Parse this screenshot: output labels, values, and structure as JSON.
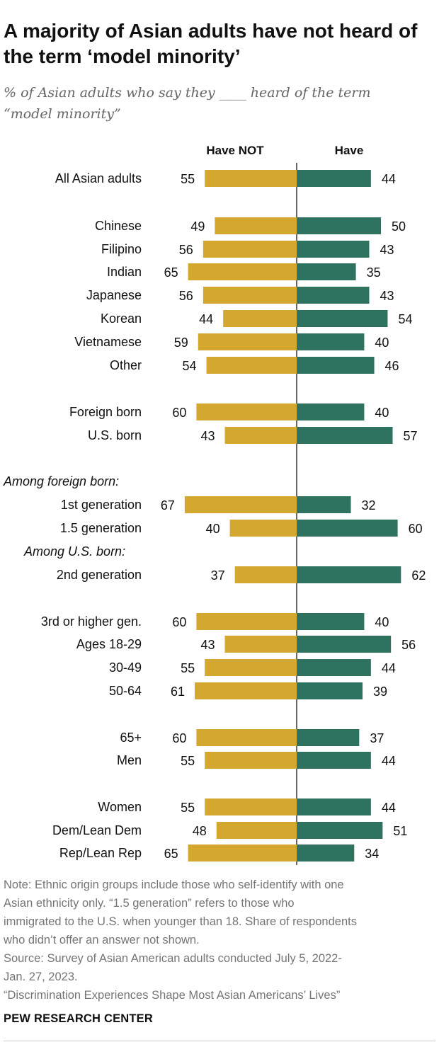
{
  "title": "A majority of Asian adults have not heard of the term ‘model minority’",
  "subtitle_line1": "% of Asian adults who say they ____ heard of the term",
  "subtitle_line2": "“model minority”",
  "colors": {
    "have_not": "#D4A82E",
    "have": "#2E7260",
    "axis": "#333333"
  },
  "chart_data": {
    "type": "bar",
    "orientation": "diverging-horizontal",
    "series": [
      {
        "name": "Have NOT",
        "color": "#D4A82E"
      },
      {
        "name": "Have",
        "color": "#2E7260"
      }
    ],
    "rows": [
      {
        "kind": "data",
        "label": "All Asian adults",
        "have_not": 55,
        "have": 44
      },
      {
        "kind": "data",
        "label": "Chinese",
        "have_not": 49,
        "have": 50
      },
      {
        "kind": "data",
        "label": "Filipino",
        "have_not": 56,
        "have": 43
      },
      {
        "kind": "data",
        "label": "Indian",
        "have_not": 65,
        "have": 35
      },
      {
        "kind": "data",
        "label": "Japanese",
        "have_not": 56,
        "have": 43
      },
      {
        "kind": "data",
        "label": "Korean",
        "have_not": 44,
        "have": 54
      },
      {
        "kind": "data",
        "label": "Vietnamese",
        "have_not": 59,
        "have": 40
      },
      {
        "kind": "data",
        "label": "Other",
        "have_not": 54,
        "have": 46
      },
      {
        "kind": "data",
        "label": "Foreign born",
        "have_not": 60,
        "have": 40
      },
      {
        "kind": "data",
        "label": "U.S. born",
        "have_not": 43,
        "have": 57
      },
      {
        "kind": "header",
        "label": "Among foreign born:"
      },
      {
        "kind": "data",
        "label": "1st generation",
        "have_not": 67,
        "have": 32
      },
      {
        "kind": "data",
        "label": "1.5 generation",
        "have_not": 40,
        "have": 60
      },
      {
        "kind": "header",
        "label": "Among U.S. born:"
      },
      {
        "kind": "data",
        "label": "2nd generation",
        "have_not": 37,
        "have": 62
      },
      {
        "kind": "data",
        "label": "3rd or higher gen.",
        "have_not": 60,
        "have": 40
      },
      {
        "kind": "data",
        "label": "Ages 18-29",
        "have_not": 43,
        "have": 56
      },
      {
        "kind": "data",
        "label": "30-49",
        "have_not": 55,
        "have": 44
      },
      {
        "kind": "data",
        "label": "50-64",
        "have_not": 61,
        "have": 39
      },
      {
        "kind": "data",
        "label": "65+",
        "have_not": 60,
        "have": 37
      },
      {
        "kind": "data",
        "label": "Men",
        "have_not": 55,
        "have": 44
      },
      {
        "kind": "data",
        "label": "Women",
        "have_not": 55,
        "have": 44
      },
      {
        "kind": "data",
        "label": "Dem/Lean Dem",
        "have_not": 48,
        "have": 51
      },
      {
        "kind": "data",
        "label": "Rep/Lean Rep",
        "have_not": 65,
        "have": 34
      }
    ]
  },
  "notes": [
    "Note: Ethnic origin groups include those who self-identify with one",
    "Asian ethnicity only. “1.5 generation” refers to those who",
    "immigrated to the U.S. when younger than 18. Share of respondents",
    "who didn’t offer an answer not shown.",
    "Source: Survey of Asian American adults conducted July 5, 2022-",
    "Jan. 27, 2023.",
    "“Discrimination Experiences Shape Most Asian Americans’ Lives”"
  ],
  "org": "PEW RESEARCH CENTER"
}
